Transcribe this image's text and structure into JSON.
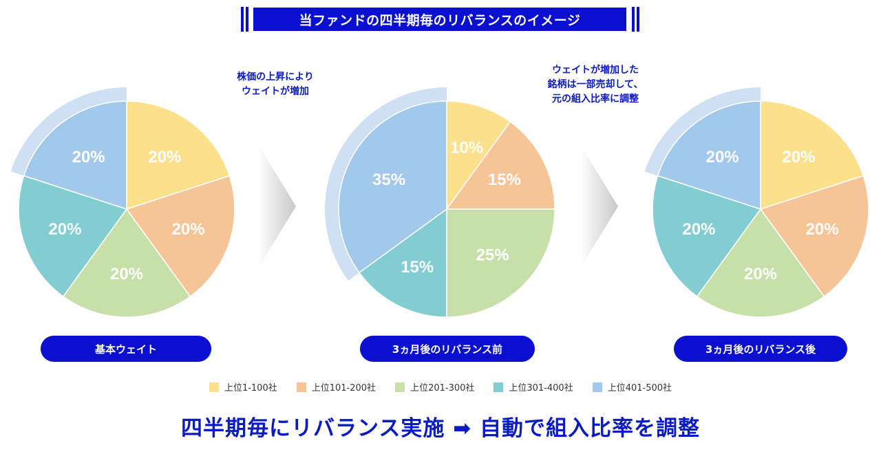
{
  "header": {
    "title": "当ファンドの四半期毎のリバランスのイメージ"
  },
  "notes": {
    "left_lines": [
      "株価の上昇により",
      "ウェイトが増加"
    ],
    "right_lines": [
      "ウェイトが増加した",
      "銘柄は一部売却して、",
      "元の組入比率に調整"
    ]
  },
  "colors": {
    "accent": "#0b0fd0",
    "highlight": "#cfe0f5",
    "arrow": "#dcdcdc"
  },
  "chart_data": [
    {
      "type": "pie",
      "label": "基本ウェイト",
      "highlight_category": "上位401-500社",
      "slices": [
        {
          "category": "上位1-100社",
          "value": 20,
          "label": "20%",
          "color": "#fde08c"
        },
        {
          "category": "上位101-200社",
          "value": 20,
          "label": "20%",
          "color": "#f6c597"
        },
        {
          "category": "上位201-300社",
          "value": 20,
          "label": "20%",
          "color": "#c7e0aa"
        },
        {
          "category": "上位301-400社",
          "value": 20,
          "label": "20%",
          "color": "#81cdd1"
        },
        {
          "category": "上位401-500社",
          "value": 20,
          "label": "20%",
          "color": "#a2c8eb"
        }
      ]
    },
    {
      "type": "pie",
      "label": "3ヵ月後のリバランス前",
      "highlight_category": "上位401-500社",
      "slices": [
        {
          "category": "上位1-100社",
          "value": 10,
          "label": "10%",
          "color": "#fde08c"
        },
        {
          "category": "上位101-200社",
          "value": 15,
          "label": "15%",
          "color": "#f6c597"
        },
        {
          "category": "上位201-300社",
          "value": 25,
          "label": "25%",
          "color": "#c7e0aa"
        },
        {
          "category": "上位301-400社",
          "value": 15,
          "label": "15%",
          "color": "#81cdd1"
        },
        {
          "category": "上位401-500社",
          "value": 35,
          "label": "35%",
          "color": "#a2c8eb"
        }
      ]
    },
    {
      "type": "pie",
      "label": "3ヵ月後のリバランス後",
      "highlight_category": "上位401-500社",
      "slices": [
        {
          "category": "上位1-100社",
          "value": 20,
          "label": "20%",
          "color": "#fde08c"
        },
        {
          "category": "上位101-200社",
          "value": 20,
          "label": "20%",
          "color": "#f6c597"
        },
        {
          "category": "上位201-300社",
          "value": 20,
          "label": "20%",
          "color": "#c7e0aa"
        },
        {
          "category": "上位301-400社",
          "value": 20,
          "label": "20%",
          "color": "#81cdd1"
        },
        {
          "category": "上位401-500社",
          "value": 20,
          "label": "20%",
          "color": "#a2c8eb"
        }
      ]
    }
  ],
  "legend": [
    {
      "label": "上位1-100社",
      "color": "#fde08c"
    },
    {
      "label": "上位101-200社",
      "color": "#f6c597"
    },
    {
      "label": "上位201-300社",
      "color": "#c7e0aa"
    },
    {
      "label": "上位301-400社",
      "color": "#81cdd1"
    },
    {
      "label": "上位401-500社",
      "color": "#a2c8eb"
    }
  ],
  "footer": {
    "text": "四半期毎にリバランス実施 ➡ 自動で組入比率を調整"
  }
}
